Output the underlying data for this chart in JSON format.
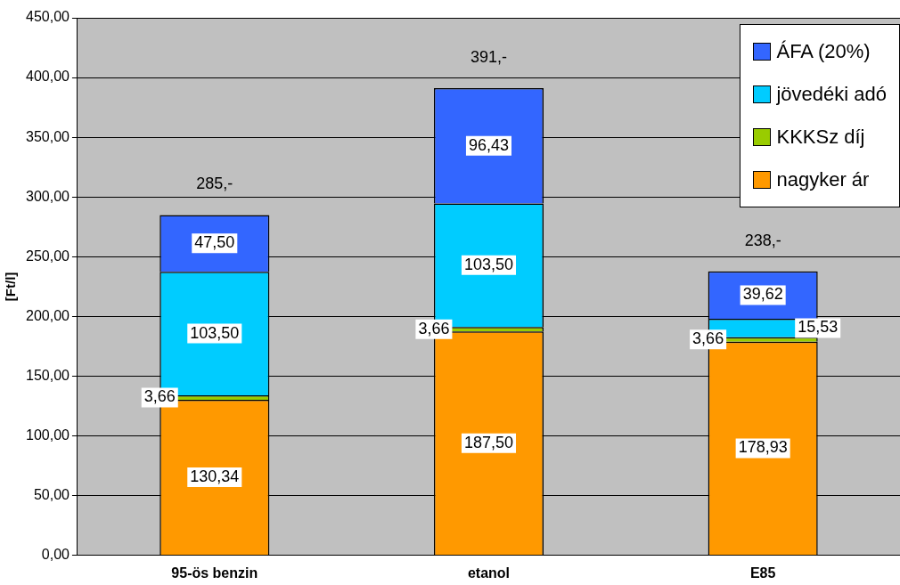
{
  "chart_data": {
    "type": "bar",
    "stacked": true,
    "ylabel": "[Ft/l]",
    "categories": [
      "95-ös benzin",
      "etanol",
      "E85"
    ],
    "series": [
      {
        "name": "nagyker ár",
        "color": "#ff9900",
        "values": [
          130.34,
          187.5,
          178.93
        ],
        "value_labels": [
          "130,34",
          "187,50",
          "178,93"
        ]
      },
      {
        "name": "KKKSz díj",
        "color": "#99cc00",
        "values": [
          3.66,
          3.66,
          3.66
        ],
        "value_labels": [
          "3,66",
          "3,66",
          "3,66"
        ]
      },
      {
        "name": "jövedéki adó",
        "color": "#00ccff",
        "values": [
          103.5,
          103.5,
          15.53
        ],
        "value_labels": [
          "103,50",
          "103,50",
          "15,53"
        ]
      },
      {
        "name": "ÁFA (20%)",
        "color": "#3366ff",
        "values": [
          47.5,
          96.43,
          39.62
        ],
        "value_labels": [
          "47,50",
          "96,43",
          "39,62"
        ]
      }
    ],
    "totals": [
      "285,-",
      "391,-",
      "238,-"
    ],
    "ylim": [
      0,
      450
    ],
    "yticks": [
      {
        "value": 0,
        "label": "0,00"
      },
      {
        "value": 50,
        "label": "50,00"
      },
      {
        "value": 100,
        "label": "100,00"
      },
      {
        "value": 150,
        "label": "150,00"
      },
      {
        "value": 200,
        "label": "200,00"
      },
      {
        "value": 250,
        "label": "250,00"
      },
      {
        "value": 300,
        "label": "300,00"
      },
      {
        "value": 350,
        "label": "350,00"
      },
      {
        "value": 400,
        "label": "400,00"
      },
      {
        "value": 450,
        "label": "450,00"
      }
    ],
    "grid": "y",
    "legend": "top right"
  }
}
